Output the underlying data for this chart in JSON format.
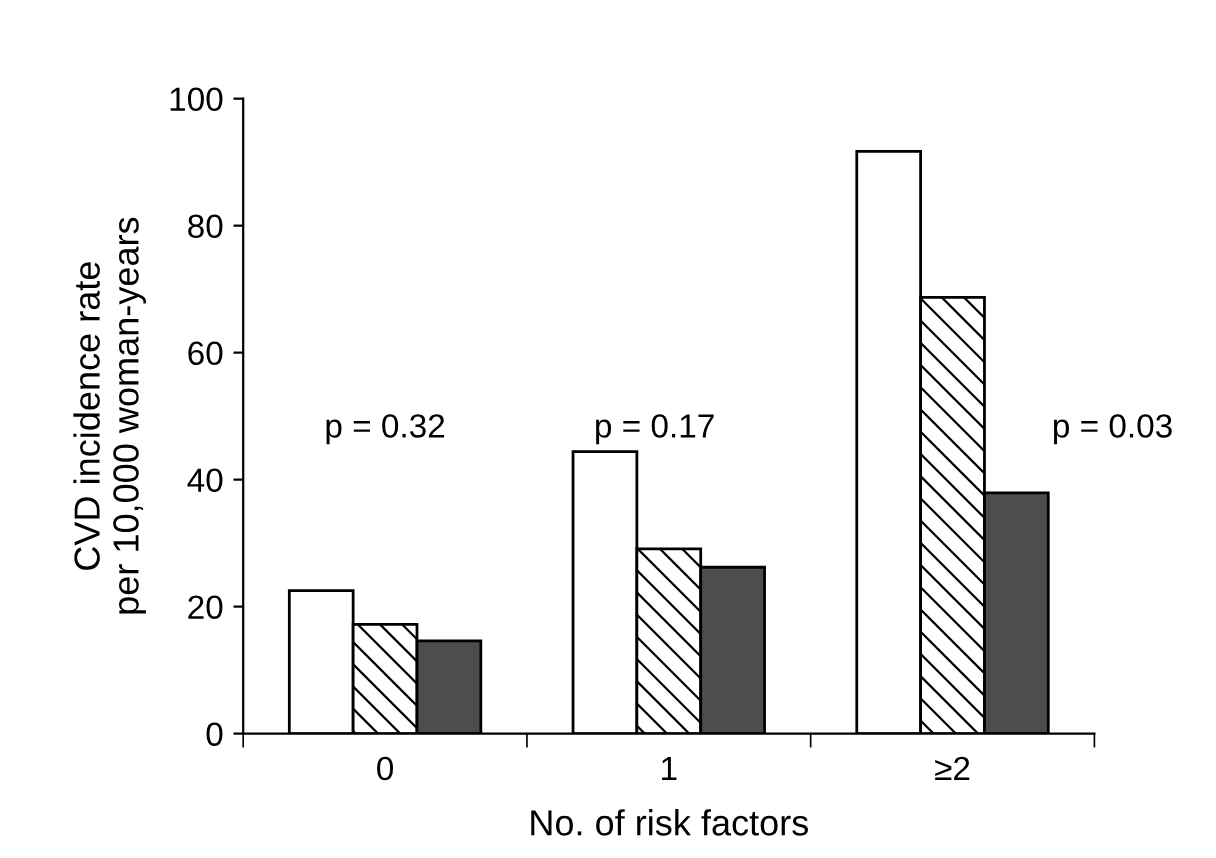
{
  "chart_data": {
    "type": "bar",
    "xlabel": "No. of risk factors",
    "ylabel": "CVD incidence rate\nper 10,000 woman-years",
    "categories": [
      "0",
      "1",
      "≥2"
    ],
    "series": [
      {
        "color": "#ffffff",
        "values": [
          22.5,
          44.4,
          91.7
        ]
      },
      {
        "color": "#000000",
        "values": [
          17.2,
          29.1,
          68.7
        ]
      },
      {
        "color": "#4d4d4d",
        "values": [
          14.6,
          26.2,
          37.9
        ]
      }
    ],
    "annotations": [
      "p = 0.32",
      "p = 0.17",
      "p = 0.03"
    ],
    "ylim": [
      0,
      100
    ],
    "yticks": [
      0,
      20,
      40,
      60,
      80,
      100
    ],
    "grid": false,
    "legend": false
  }
}
